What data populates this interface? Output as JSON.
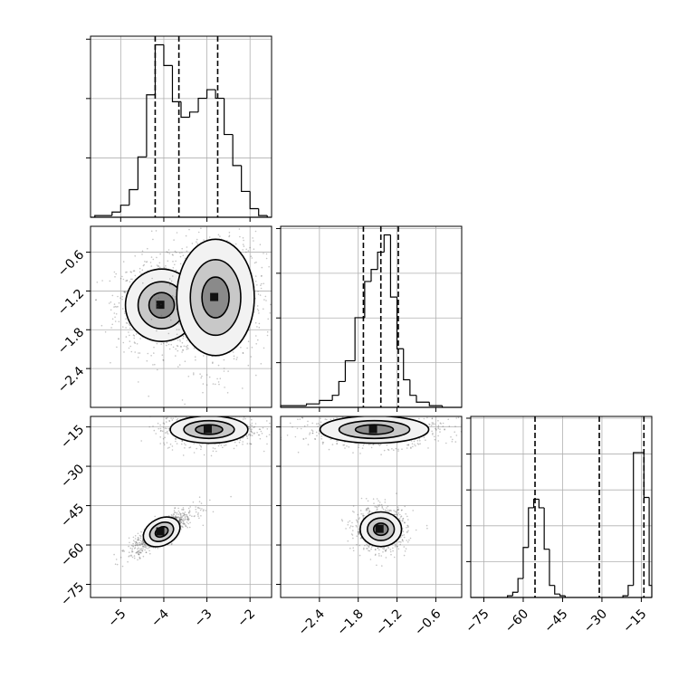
{
  "chart_data": [
    {
      "type": "histogram",
      "panel": "hist-param-1",
      "bins": [
        {
          "x0": -5.6,
          "x1": -5.2,
          "count": 0.01
        },
        {
          "x0": -5.2,
          "x1": -5.0,
          "count": 0.03
        },
        {
          "x0": -5.0,
          "x1": -4.8,
          "count": 0.07
        },
        {
          "x0": -4.8,
          "x1": -4.6,
          "count": 0.16
        },
        {
          "x0": -4.6,
          "x1": -4.4,
          "count": 0.35
        },
        {
          "x0": -4.4,
          "x1": -4.2,
          "count": 0.71
        },
        {
          "x0": -4.2,
          "x1": -4.0,
          "count": 1.0
        },
        {
          "x0": -4.0,
          "x1": -3.8,
          "count": 0.88
        },
        {
          "x0": -3.8,
          "x1": -3.6,
          "count": 0.67
        },
        {
          "x0": -3.6,
          "x1": -3.4,
          "count": 0.58
        },
        {
          "x0": -3.4,
          "x1": -3.2,
          "count": 0.61
        },
        {
          "x0": -3.2,
          "x1": -3.0,
          "count": 0.69
        },
        {
          "x0": -3.0,
          "x1": -2.8,
          "count": 0.74
        },
        {
          "x0": -2.8,
          "x1": -2.6,
          "count": 0.69
        },
        {
          "x0": -2.6,
          "x1": -2.4,
          "count": 0.48
        },
        {
          "x0": -2.4,
          "x1": -2.2,
          "count": 0.3
        },
        {
          "x0": -2.2,
          "x1": -2.0,
          "count": 0.15
        },
        {
          "x0": -2.0,
          "x1": -1.8,
          "count": 0.05
        },
        {
          "x0": -1.8,
          "x1": -1.6,
          "count": 0.01
        }
      ],
      "quantiles": [
        -4.2,
        -3.65,
        -2.75
      ],
      "xlim": [
        -5.7,
        -1.5
      ]
    },
    {
      "type": "histogram",
      "panel": "hist-param-2",
      "bins": [
        {
          "x0": -3.0,
          "x1": -2.6,
          "count": 0.01
        },
        {
          "x0": -2.6,
          "x1": -2.4,
          "count": 0.02
        },
        {
          "x0": -2.4,
          "x1": -2.2,
          "count": 0.04
        },
        {
          "x0": -2.2,
          "x1": -2.1,
          "count": 0.07
        },
        {
          "x0": -2.1,
          "x1": -2.0,
          "count": 0.15
        },
        {
          "x0": -2.0,
          "x1": -1.85,
          "count": 0.27
        },
        {
          "x0": -1.85,
          "x1": -1.7,
          "count": 0.52
        },
        {
          "x0": -1.7,
          "x1": -1.6,
          "count": 0.73
        },
        {
          "x0": -1.6,
          "x1": -1.5,
          "count": 0.8
        },
        {
          "x0": -1.5,
          "x1": -1.4,
          "count": 0.9
        },
        {
          "x0": -1.4,
          "x1": -1.3,
          "count": 1.0
        },
        {
          "x0": -1.3,
          "x1": -1.2,
          "count": 0.64
        },
        {
          "x0": -1.2,
          "x1": -1.1,
          "count": 0.34
        },
        {
          "x0": -1.1,
          "x1": -1.0,
          "count": 0.16
        },
        {
          "x0": -1.0,
          "x1": -0.9,
          "count": 0.07
        },
        {
          "x0": -0.9,
          "x1": -0.7,
          "count": 0.03
        },
        {
          "x0": -0.7,
          "x1": -0.5,
          "count": 0.01
        }
      ],
      "quantiles": [
        -1.72,
        -1.45,
        -1.18
      ],
      "xlim": [
        -3.0,
        -0.2
      ]
    },
    {
      "type": "histogram",
      "panel": "hist-param-3",
      "bins": [
        {
          "x0": -66,
          "x1": -64,
          "count": 0.01
        },
        {
          "x0": -64,
          "x1": -62,
          "count": 0.03
        },
        {
          "x0": -62,
          "x1": -60,
          "count": 0.11
        },
        {
          "x0": -60,
          "x1": -58,
          "count": 0.29
        },
        {
          "x0": -58,
          "x1": -56,
          "count": 0.52
        },
        {
          "x0": -56,
          "x1": -54,
          "count": 0.57
        },
        {
          "x0": -54,
          "x1": -52,
          "count": 0.52
        },
        {
          "x0": -52,
          "x1": -50,
          "count": 0.28
        },
        {
          "x0": -50,
          "x1": -48,
          "count": 0.07
        },
        {
          "x0": -48,
          "x1": -46,
          "count": 0.02
        },
        {
          "x0": -46,
          "x1": -44,
          "count": 0.01
        },
        {
          "x0": -22,
          "x1": -20,
          "count": 0.01
        },
        {
          "x0": -20,
          "x1": -18,
          "count": 0.07
        },
        {
          "x0": -18,
          "x1": -16,
          "count": 0.84
        },
        {
          "x0": -16,
          "x1": -14,
          "count": 0.84
        },
        {
          "x0": -14,
          "x1": -12,
          "count": 0.58
        },
        {
          "x0": -12,
          "x1": -10,
          "count": 0.07
        }
      ],
      "quantiles": [
        -55.5,
        -31.0,
        -14.0
      ],
      "xlim": [
        -80,
        -11
      ]
    },
    {
      "type": "scatter",
      "panel": "joint-param-1-vs-param-2",
      "clusters": [
        {
          "cx": -4.05,
          "cy": -1.42,
          "sx": 0.42,
          "sy": 0.28,
          "n": 900
        },
        {
          "cx": -2.8,
          "cy": -1.3,
          "sx": 0.45,
          "sy": 0.45,
          "n": 800
        }
      ],
      "contour_levels": 3,
      "xlim": [
        -5.7,
        -1.5
      ],
      "ylim": [
        -3.0,
        -0.2
      ]
    },
    {
      "type": "scatter",
      "panel": "joint-param-1-vs-param-3",
      "clusters": [
        {
          "cx": -2.95,
          "cy": -16,
          "sx": 0.45,
          "sy": 2.6,
          "n": 800
        },
        {
          "cx": -4.05,
          "cy": -55,
          "sx": 0.3,
          "sy": 3.4,
          "rho": 0.85,
          "n": 800
        }
      ],
      "contour_levels": 3,
      "xlim": [
        -5.7,
        -1.5
      ],
      "ylim": [
        -80,
        -11
      ]
    },
    {
      "type": "scatter",
      "panel": "joint-param-2-vs-param-3",
      "clusters": [
        {
          "cx": -1.55,
          "cy": -16,
          "sx": 0.42,
          "sy": 2.6,
          "n": 800
        },
        {
          "cx": -1.45,
          "cy": -54,
          "sx": 0.16,
          "sy": 3.3,
          "n": 800
        }
      ],
      "contour_levels": 3,
      "xlim": [
        -3.0,
        -0.2
      ],
      "ylim": [
        -80,
        -11
      ]
    }
  ],
  "axes": {
    "param1_ticks": [
      "−5",
      "−4",
      "−3",
      "−2"
    ],
    "param1_values": [
      -5,
      -4,
      -3,
      -2
    ],
    "param2_ticks": [
      "−2.4",
      "−1.8",
      "−1.2",
      "−0.6"
    ],
    "param2_values": [
      -2.4,
      -1.8,
      -1.2,
      -0.6
    ],
    "param3_ticks": [
      "−75",
      "−60",
      "−45",
      "−30",
      "−15"
    ],
    "param3_values": [
      -75,
      -60,
      -45,
      -30,
      -15
    ]
  }
}
